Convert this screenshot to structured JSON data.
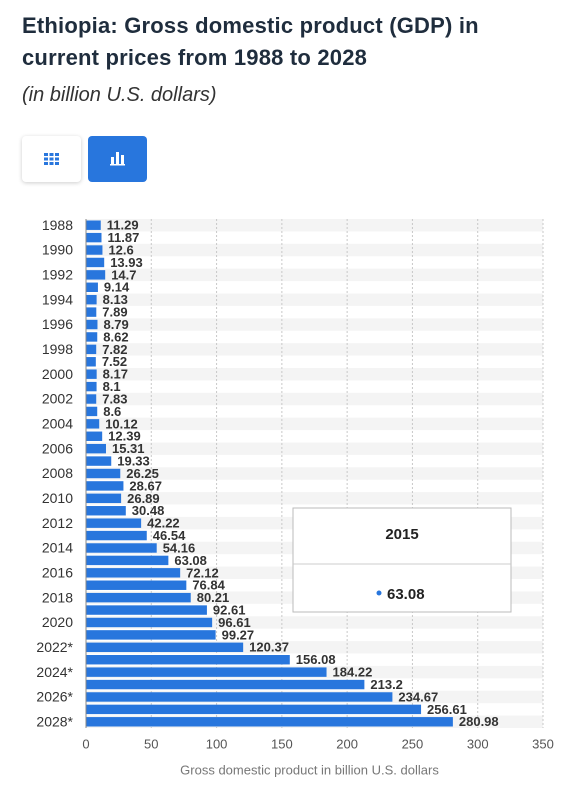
{
  "chart_data": {
    "type": "hbar",
    "title": "Ethiopia: Gross domestic product (GDP) in current prices from 1988 to 2028",
    "subtitle": "(in billion U.S. dollars)",
    "x_label": "Gross domestic product in billion U.S. dollars",
    "categories": [
      "1988",
      null,
      "1990",
      null,
      "1992",
      null,
      "1994",
      null,
      "1996",
      null,
      "1998",
      null,
      "2000",
      null,
      "2002",
      null,
      "2004",
      null,
      "2006",
      null,
      "2008",
      null,
      "2010",
      null,
      "2012",
      null,
      "2014",
      null,
      "2016",
      null,
      "2018",
      null,
      "2020",
      null,
      "2022*",
      null,
      "2024*",
      null,
      "2026*",
      null,
      "2028*"
    ],
    "values": [
      11.29,
      11.87,
      12.6,
      13.93,
      14.7,
      9.14,
      8.13,
      7.89,
      8.79,
      8.62,
      7.82,
      7.52,
      8.17,
      8.1,
      7.83,
      8.6,
      10.12,
      12.39,
      15.31,
      19.33,
      26.25,
      28.67,
      26.89,
      30.48,
      42.22,
      46.54,
      54.16,
      63.08,
      72.12,
      76.84,
      80.21,
      92.61,
      96.61,
      99.27,
      120.37,
      156.08,
      184.22,
      213.2,
      234.67,
      256.61,
      280.98
    ],
    "color": "#2876dd",
    "xlim": [
      0,
      350
    ],
    "xticks": [
      0,
      50,
      100,
      150,
      200,
      250,
      300,
      350
    ],
    "grid": true,
    "tooltip": {
      "label": "2015"
    }
  }
}
